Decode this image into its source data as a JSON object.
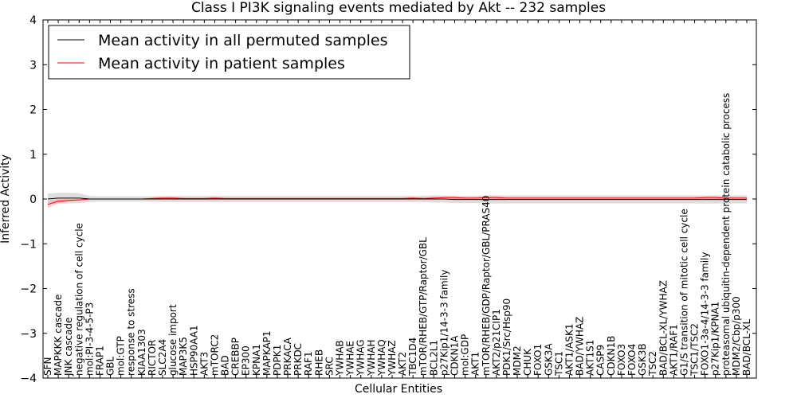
{
  "chart_data": {
    "type": "line",
    "title": "Class I PI3K signaling events mediated by Akt -- 232 samples",
    "xlabel": "Cellular Entities",
    "ylabel": "Inferred Activity",
    "ylim": [
      -4,
      4
    ],
    "yticks": [
      -4,
      -3,
      -2,
      -1,
      0,
      1,
      2,
      3,
      4
    ],
    "ytick_labels": [
      "−4",
      "−3",
      "−2",
      "−1",
      "0",
      "1",
      "2",
      "3",
      "4"
    ],
    "legend": {
      "position": "top-left",
      "entries": [
        "Mean activity in all permuted samples",
        "Mean activity in patient samples"
      ]
    },
    "categories": [
      "SFN",
      "MAPKKK cascade",
      "JNK cascade",
      "negative regulation of cell cycle",
      "mol:PI-3-4-5-P3",
      "FRAP1",
      "GBL",
      "mol:GTP",
      "response to stress",
      "KIAA1303",
      "RICTOR",
      "SLC2A4",
      "glucose import",
      "MAP3K5",
      "HSP90AA1",
      "AKT3",
      "mTORC2",
      "BAD",
      "CREBBP",
      "EP300",
      "KPNA1",
      "MAPKAP1",
      "PDPK1",
      "PRKACA",
      "PRKDC",
      "RAF1",
      "RHEB",
      "SRC",
      "YWHAB",
      "YWHAE",
      "YWHAG",
      "YWHAH",
      "YWHAQ",
      "YWHAZ",
      "AKT2",
      "TBC1D4",
      "mTOR/RHEB/GTP/Raptor/GBL",
      "BCL2L1",
      "p27Kip1/14-3-3 family",
      "CDKN1A",
      "mol:GDP",
      "AKT1",
      "mTOR/RHEB/GDP/Raptor/GBL/PRAS40",
      "AKT2/p21CIP1",
      "PDK1/Src/Hsp90",
      "MDM2",
      "CHUK",
      "FOXO1",
      "GSK3A",
      "TSC1",
      "AKT1/ASK1",
      "BAD/YWHAZ",
      "AKT1S1",
      "CASP9",
      "CDKN1B",
      "FOXO3",
      "FOXO4",
      "GSK3B",
      "TSC2",
      "BAD/BCL-XL/YWHAZ",
      "AKT1/RAF1",
      "G1/S transition of mitotic cell cycle",
      "TSC1/TSC2",
      "FOXO1-3a-4/14-3-3 family",
      "p27Kip1/KPNA1",
      "proteasomal ubiquitin-dependent protein catabolic process",
      "MDM2/Cbp/p300",
      "BAD/BCL-XL"
    ],
    "series": [
      {
        "name": "Mean activity in all permuted samples",
        "color": "#000000",
        "band_color": "#c8c8c8",
        "values": [
          0.0,
          0.02,
          0.02,
          0.02,
          0.0,
          0.0,
          0.0,
          0.0,
          0.0,
          0.0,
          0.0,
          0.0,
          0.0,
          0.0,
          0.0,
          0.0,
          0.0,
          0.0,
          0.0,
          0.0,
          0.0,
          0.0,
          0.0,
          0.0,
          0.0,
          0.0,
          0.0,
          0.0,
          0.0,
          0.0,
          0.0,
          0.0,
          0.0,
          0.0,
          0.0,
          0.0,
          0.0,
          0.0,
          0.0,
          -0.01,
          -0.01,
          -0.01,
          -0.01,
          -0.01,
          -0.01,
          -0.01,
          -0.01,
          -0.01,
          -0.01,
          -0.01,
          -0.01,
          -0.01,
          -0.01,
          -0.01,
          -0.01,
          -0.01,
          -0.01,
          -0.01,
          -0.01,
          -0.01,
          -0.01,
          -0.01,
          -0.01,
          -0.01,
          -0.01,
          -0.01,
          -0.01,
          -0.01
        ],
        "band": [
          0.12,
          0.12,
          0.12,
          0.11,
          0.07,
          0.06,
          0.06,
          0.06,
          0.06,
          0.06,
          0.06,
          0.07,
          0.07,
          0.07,
          0.07,
          0.07,
          0.07,
          0.07,
          0.07,
          0.07,
          0.07,
          0.07,
          0.07,
          0.07,
          0.07,
          0.07,
          0.07,
          0.07,
          0.07,
          0.07,
          0.07,
          0.07,
          0.07,
          0.07,
          0.07,
          0.07,
          0.07,
          0.08,
          0.08,
          0.08,
          0.08,
          0.08,
          0.09,
          0.09,
          0.09,
          0.09,
          0.09,
          0.09,
          0.09,
          0.09,
          0.09,
          0.09,
          0.09,
          0.09,
          0.09,
          0.09,
          0.09,
          0.09,
          0.09,
          0.09,
          0.09,
          0.09,
          0.09,
          0.09,
          0.09,
          0.09,
          0.09,
          0.09
        ]
      },
      {
        "name": "Mean activity in patient samples",
        "color": "#ff0000",
        "band_color": "#ffaaaa",
        "values": [
          -0.12,
          -0.05,
          -0.03,
          -0.02,
          0.0,
          0.0,
          0.0,
          0.0,
          0.0,
          0.0,
          0.01,
          0.02,
          0.02,
          0.01,
          0.01,
          0.01,
          0.02,
          0.01,
          0.01,
          0.01,
          0.01,
          0.01,
          0.01,
          0.01,
          0.01,
          0.01,
          0.01,
          0.01,
          0.01,
          0.01,
          0.01,
          0.01,
          0.01,
          0.01,
          0.01,
          0.02,
          0.01,
          0.02,
          0.03,
          0.03,
          0.02,
          0.02,
          0.03,
          0.03,
          0.02,
          0.02,
          0.02,
          0.02,
          0.02,
          0.02,
          0.02,
          0.02,
          0.02,
          0.02,
          0.02,
          0.02,
          0.02,
          0.02,
          0.02,
          0.02,
          0.02,
          0.02,
          0.02,
          0.03,
          0.03,
          0.02,
          0.02,
          0.02
        ],
        "band": [
          0.08,
          0.05,
          0.03,
          0.02,
          0.01,
          0.01,
          0.01,
          0.01,
          0.01,
          0.01,
          0.02,
          0.03,
          0.03,
          0.02,
          0.02,
          0.02,
          0.02,
          0.02,
          0.02,
          0.02,
          0.02,
          0.02,
          0.02,
          0.02,
          0.02,
          0.02,
          0.02,
          0.02,
          0.02,
          0.02,
          0.02,
          0.02,
          0.02,
          0.02,
          0.02,
          0.02,
          0.02,
          0.03,
          0.03,
          0.04,
          0.03,
          0.03,
          0.04,
          0.04,
          0.03,
          0.03,
          0.03,
          0.03,
          0.03,
          0.03,
          0.03,
          0.03,
          0.03,
          0.03,
          0.03,
          0.03,
          0.03,
          0.03,
          0.03,
          0.03,
          0.03,
          0.03,
          0.03,
          0.04,
          0.04,
          0.03,
          0.03,
          0.03
        ]
      }
    ]
  }
}
